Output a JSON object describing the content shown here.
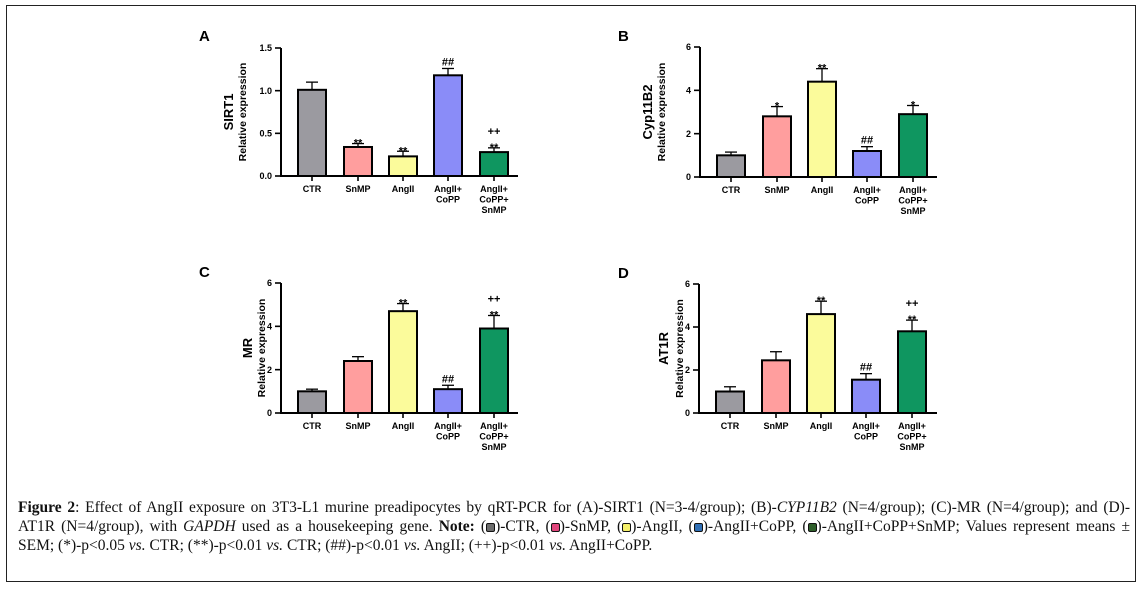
{
  "figure": {
    "label": "Figure 2",
    "caption": {
      "part1": ": Effect of AngII exposure on 3T3-L1 murine preadipocytes by qRT-PCR for (A)-SIRT1 (N=3-4/group); (B)-",
      "gene_b": "CYP11B2",
      "part2": " (N=4/group); (C)-MR (N=4/group); and (D)-AT1R (N=4/group), with ",
      "gene_gapdh": "GAPDH",
      "part3": " used as a housekeeping gene. ",
      "note_label": "Note:",
      "legend": [
        {
          "name": "CTR",
          "text": "-CTR, ",
          "color": "#6b6b6b"
        },
        {
          "name": "SnMP",
          "text": "-SnMP, ",
          "color": "#e0457b"
        },
        {
          "name": "AngII",
          "text": "-AngII, ",
          "color": "#f5f06a"
        },
        {
          "name": "AngII+CoPP",
          "text": "-AngII+CoPP, ",
          "color": "#2f6fb5"
        },
        {
          "name": "AngII+CoPP+SnMP",
          "text": "-AngII+CoPP+SnMP; ",
          "color": "#2e5e2a"
        }
      ],
      "part4": "Values represent means ± SEM; (*)-p<0.05 ",
      "vs": "vs.",
      "part5": " CTR; (**)-p<0.01 ",
      "part6": " CTR; (##)-p<0.01 ",
      "part7": " AngII; (++)-p<0.01 ",
      "part8": " AngII+CoPP."
    }
  },
  "chart_data": [
    {
      "type": "bar",
      "panel": "A",
      "title": "",
      "ylabel_main": "SIRT1",
      "ylabel_sub": "Relative expression",
      "categories": [
        [
          "CTR"
        ],
        [
          "SnMP"
        ],
        [
          "AngII"
        ],
        [
          "AngII+",
          "CoPP"
        ],
        [
          "AngII+",
          "CoPP+",
          "SnMP"
        ]
      ],
      "values": [
        1.01,
        0.34,
        0.23,
        1.18,
        0.28
      ],
      "errors": [
        0.09,
        0.04,
        0.06,
        0.08,
        0.05
      ],
      "significance": [
        [],
        [
          "**"
        ],
        [
          "**"
        ],
        [
          "##"
        ],
        [
          "++",
          "**"
        ]
      ],
      "colors": [
        "#9b9aa0",
        "#ff9e9e",
        "#fbfb9b",
        "#8a8cf8",
        "#0f9660"
      ],
      "yticks": [
        "0.0",
        "0.5",
        "1.0",
        "1.5"
      ],
      "ylim": [
        0,
        1.5
      ],
      "grid": false
    },
    {
      "type": "bar",
      "panel": "B",
      "title": "",
      "ylabel_main": "Cyp11B2",
      "ylabel_sub": "Relative expression",
      "categories": [
        [
          "CTR"
        ],
        [
          "SnMP"
        ],
        [
          "AngII"
        ],
        [
          "AngII+",
          "CoPP"
        ],
        [
          "AngII+",
          "CoPP+",
          "SnMP"
        ]
      ],
      "values": [
        1.0,
        2.8,
        4.4,
        1.2,
        2.9
      ],
      "errors": [
        0.15,
        0.45,
        0.6,
        0.2,
        0.4
      ],
      "significance": [
        [],
        [
          "*"
        ],
        [
          "**"
        ],
        [
          "##"
        ],
        [
          "*"
        ]
      ],
      "colors": [
        "#9b9aa0",
        "#ff9e9e",
        "#fbfb9b",
        "#8a8cf8",
        "#0f9660"
      ],
      "yticks": [
        "0",
        "2",
        "4",
        "6"
      ],
      "ylim": [
        0,
        6
      ],
      "grid": false
    },
    {
      "type": "bar",
      "panel": "C",
      "title": "",
      "ylabel_main": "MR",
      "ylabel_sub": "Relative expression",
      "categories": [
        [
          "CTR"
        ],
        [
          "SnMP"
        ],
        [
          "AngII"
        ],
        [
          "AngII+",
          "CoPP"
        ],
        [
          "AngII+",
          "CoPP+",
          "SnMP"
        ]
      ],
      "values": [
        1.0,
        2.4,
        4.7,
        1.1,
        3.9
      ],
      "errors": [
        0.1,
        0.2,
        0.35,
        0.18,
        0.6
      ],
      "significance": [
        [],
        [],
        [
          "**"
        ],
        [
          "##"
        ],
        [
          "++",
          "**"
        ]
      ],
      "colors": [
        "#9b9aa0",
        "#ff9e9e",
        "#fbfb9b",
        "#8a8cf8",
        "#0f9660"
      ],
      "yticks": [
        "0",
        "2",
        "4",
        "6"
      ],
      "ylim": [
        0,
        6
      ],
      "grid": false
    },
    {
      "type": "bar",
      "panel": "D",
      "title": "",
      "ylabel_main": "AT1R",
      "ylabel_sub": "Relative expression",
      "categories": [
        [
          "CTR"
        ],
        [
          "SnMP"
        ],
        [
          "AngII"
        ],
        [
          "AngII+",
          "CoPP"
        ],
        [
          "AngII+",
          "CoPP+",
          "SnMP"
        ]
      ],
      "values": [
        1.0,
        2.45,
        4.6,
        1.55,
        3.8
      ],
      "errors": [
        0.22,
        0.4,
        0.6,
        0.28,
        0.52
      ],
      "significance": [
        [],
        [],
        [
          "**"
        ],
        [
          "##"
        ],
        [
          "++",
          "**"
        ]
      ],
      "colors": [
        "#9b9aa0",
        "#ff9e9e",
        "#fbfb9b",
        "#8a8cf8",
        "#0f9660"
      ],
      "yticks": [
        "0",
        "2",
        "4",
        "6"
      ],
      "ylim": [
        0,
        6
      ],
      "grid": false
    }
  ]
}
